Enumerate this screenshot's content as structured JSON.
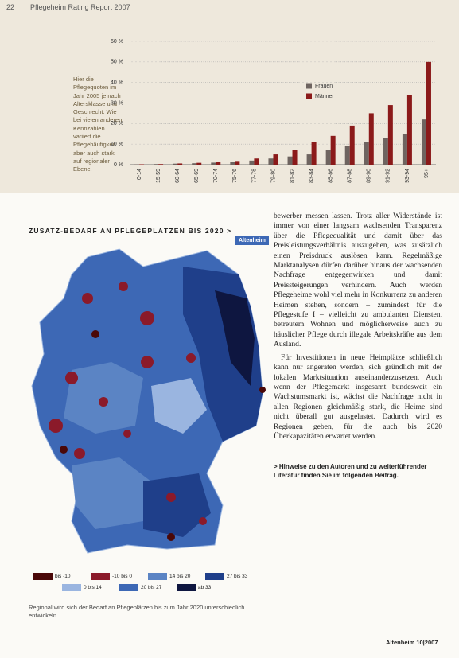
{
  "header": {
    "page_number": "22",
    "title": "Pflegeheim Rating Report 2007"
  },
  "chart_caption": "Hier die Pflegequoten im Jahr 2005 je nach Altersklasse und Geschlecht. Wie bei vielen anderen Kennzahlen variiert die Pflegehäufigkeit aber auch stark auf regionaler Ebene.",
  "chart_data": {
    "type": "bar",
    "categories": [
      "0-14",
      "15-59",
      "60-64",
      "65-69",
      "70-74",
      "75-76",
      "77-78",
      "79-80",
      "81-82",
      "83-84",
      "85-86",
      "87-88",
      "89-90",
      "91-92",
      "93-94",
      "95+"
    ],
    "series": [
      {
        "name": "Frauen",
        "color": "#6e6460",
        "values": [
          0.2,
          0.3,
          0.5,
          0.7,
          1,
          1.5,
          2,
          3,
          4,
          5,
          7,
          9,
          11,
          13,
          15,
          22
        ]
      },
      {
        "name": "Männer",
        "color": "#8b1a1a",
        "values": [
          0.2,
          0.3,
          0.6,
          0.9,
          1.2,
          1.8,
          3,
          5,
          7,
          11,
          14,
          19,
          25,
          29,
          34,
          50
        ]
      }
    ],
    "ylim": [
      0,
      60
    ],
    "yticks": [
      {
        "value": 0,
        "label": "0 %"
      },
      {
        "value": 10,
        "label": "10 %"
      },
      {
        "value": 20,
        "label": "20 %"
      },
      {
        "value": 30,
        "label": "30 %"
      },
      {
        "value": 40,
        "label": "40 %"
      },
      {
        "value": 50,
        "label": "50 %"
      },
      {
        "value": 60,
        "label": "60 %"
      }
    ],
    "grid": true,
    "legend": "right"
  },
  "map": {
    "title": "ZUSATZ-BEDARF AN PFLEGEPLÄTZEN BIS 2020 >",
    "badge": "Altenheim",
    "legend": [
      {
        "label": "bis -10",
        "color": "#4a0808"
      },
      {
        "label": "-10 bis 0",
        "color": "#8b1a2a"
      },
      {
        "label": "14 bis 20",
        "color": "#5b84c4"
      },
      {
        "label": "27 bis 33",
        "color": "#1f3f8a"
      },
      {
        "label": "0 bis 14",
        "color": "#9ab5e0"
      },
      {
        "label": "20 bis 27",
        "color": "#3d68b5"
      },
      {
        "label": "ab 33",
        "color": "#0e1640"
      }
    ],
    "caption": "Regional wird sich der Bedarf an Pflegeplätzen bis zum Jahr 2020 unterschiedlich entwickeln."
  },
  "article": {
    "paragraphs": [
      "bewerber messen lassen. Trotz aller Widerstände ist immer von einer langsam wachsenden Transparenz über die Pflegequalität und damit über das Preisleistungsverhältnis auszugehen, was zusätzlich einen Preisdruck auslösen kann. Regelmäßige Marktanalysen dürfen darüber hinaus der wachsenden Nachfrage entgegenwirken und damit Preissteigerungen verhindern. Auch werden Pflegeheime wohl viel mehr in Konkurrenz zu anderen Heimen stehen, sondern – zumindest für die Pflegestufe I – vielleicht zu ambulanten Diensten, betreutem Wohnen und möglicherweise auch zu häuslicher Pflege durch illegale Arbeitskräfte aus dem Ausland.",
      "Für Investitionen in neue Heimplätze schließlich kann nur angeraten werden, sich gründlich mit der lokalen Marktsituation auseinanderzusetzen. Auch wenn der Pflegemarkt insgesamt bundesweit ein Wachstumsmarkt ist, wächst die Nachfrage nicht in allen Regionen gleichmäßig stark, die Heime sind nicht überall gut ausgelastet. Dadurch wird es Regionen geben, für die auch bis 2020 Überkapazitäten erwartet werden."
    ],
    "note": "> Hinweise zu den Autoren und zu weiterführender Literatur finden Sie im folgenden Beitrag."
  },
  "footer": "Altenheim 10|2007"
}
